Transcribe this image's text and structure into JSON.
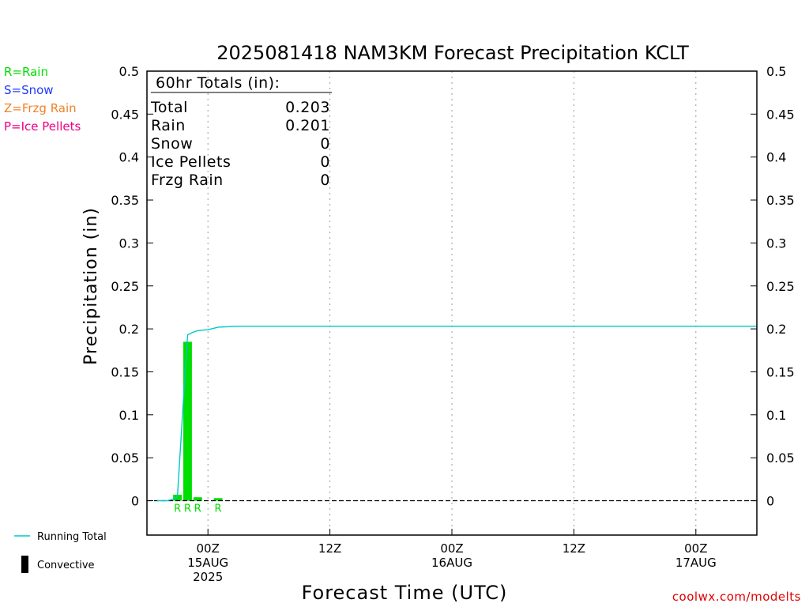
{
  "chart_data": {
    "type": "bar",
    "title": "2025081418 NAM3KM Forecast Precipitation KCLT",
    "ylabel": "Precipitation (in)",
    "xlabel": "Forecast Time (UTC)",
    "ylim": [
      -0.04,
      0.5
    ],
    "yticks": [
      0,
      0.05,
      0.1,
      0.15,
      0.2,
      0.25,
      0.3,
      0.35,
      0.4,
      0.45,
      0.5
    ],
    "ytick_labels": [
      "0",
      "0.05",
      "0.1",
      "0.15",
      "0.2",
      "0.25",
      "0.3",
      "0.35",
      "0.4",
      "0.45",
      "0.5"
    ],
    "x_unit": "forecast hour",
    "xlim": [
      0,
      60
    ],
    "xticks": [
      {
        "hour": 6,
        "lines": [
          "00Z",
          "15AUG",
          "2025"
        ]
      },
      {
        "hour": 18,
        "lines": [
          "12Z"
        ]
      },
      {
        "hour": 30,
        "lines": [
          "00Z",
          "16AUG"
        ]
      },
      {
        "hour": 42,
        "lines": [
          "12Z"
        ]
      },
      {
        "hour": 54,
        "lines": [
          "00Z",
          "17AUG"
        ]
      }
    ],
    "grid": "vertical-dotted",
    "bars": [
      {
        "hour": 3,
        "value": 0.007,
        "type": "R"
      },
      {
        "hour": 4,
        "value": 0.185,
        "type": "R"
      },
      {
        "hour": 5,
        "value": 0.004,
        "type": "R"
      },
      {
        "hour": 7,
        "value": 0.003,
        "type": "R"
      }
    ],
    "running_total": {
      "name": "Running Total",
      "x": [
        1,
        2,
        2.6,
        3,
        3.5,
        4,
        4.5,
        5,
        6,
        7,
        9,
        18,
        30,
        42,
        60
      ],
      "y": [
        0,
        0,
        0.002,
        0.005,
        0.1,
        0.193,
        0.196,
        0.198,
        0.199,
        0.202,
        0.203,
        0.203,
        0.203,
        0.203,
        0.203
      ]
    },
    "totals_box": {
      "header": "60hr Totals (in):",
      "rows": [
        {
          "label": "Total",
          "value": "0.203"
        },
        {
          "label": "Rain",
          "value": "0.201"
        },
        {
          "label": "Snow",
          "value": "0"
        },
        {
          "label": "Ice Pellets",
          "value": "0"
        },
        {
          "label": "Frzg Rain",
          "value": "0"
        }
      ]
    },
    "type_legend": [
      {
        "text": "R=Rain",
        "color": "#00dd00"
      },
      {
        "text": "S=Snow",
        "color": "#1e3cff"
      },
      {
        "text": "Z=Frzg Rain",
        "color": "#f08228"
      },
      {
        "text": "P=Ice Pellets",
        "color": "#f00082"
      }
    ],
    "line_legend": [
      {
        "text": "Running Total",
        "kind": "line",
        "color": "#00c8c8"
      },
      {
        "text": "Convective",
        "kind": "bar",
        "color": "#000000"
      }
    ],
    "colors": {
      "rain": "#00dd00",
      "running_total": "#00c8c8",
      "credit": "#e00000"
    }
  },
  "credit": "coolwx.com/modelts"
}
